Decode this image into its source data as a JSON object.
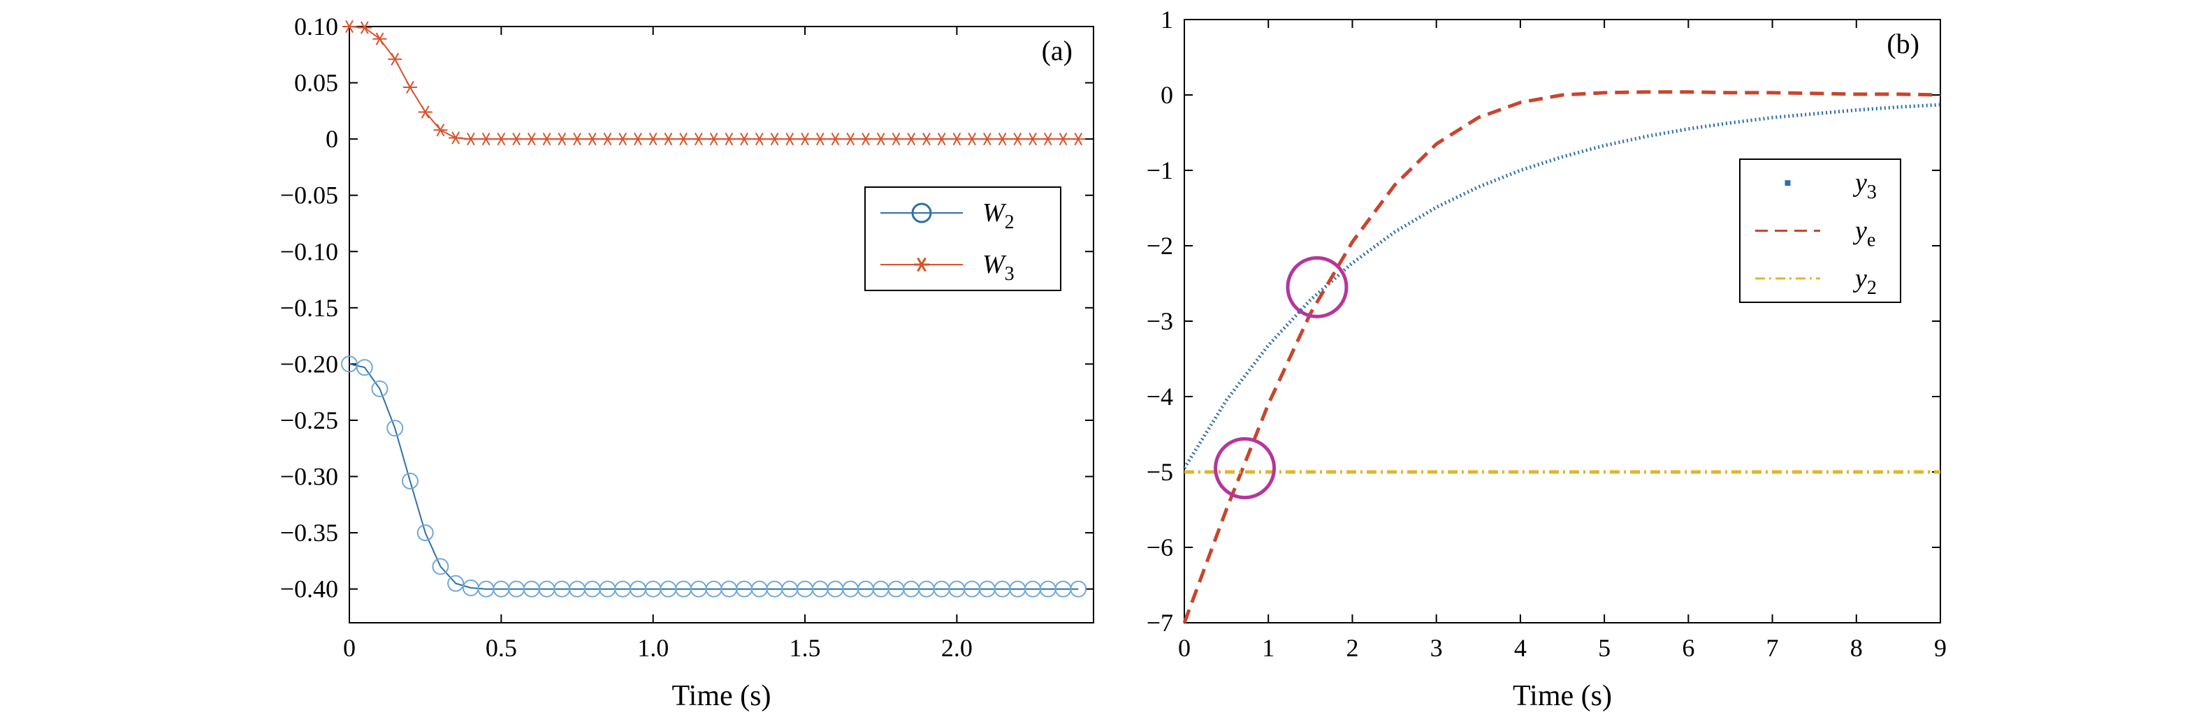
{
  "chart_data": [
    {
      "type": "line",
      "panel_label": "(a)",
      "xlabel": "Time (s)",
      "ylabel": "",
      "xlim": [
        0,
        2.45
      ],
      "ylim": [
        -0.43,
        0.1
      ],
      "x_ticks": [
        0,
        0.5,
        1.0,
        1.5,
        2.0
      ],
      "x_tick_labels": [
        "0",
        "0.5",
        "1.0",
        "1.5",
        "2.0"
      ],
      "y_ticks": [
        0.1,
        0.05,
        0,
        -0.05,
        -0.1,
        -0.15,
        -0.2,
        -0.25,
        -0.3,
        -0.35,
        -0.4
      ],
      "y_tick_labels": [
        "0.10",
        "0.05",
        "0",
        "−0.05",
        "−0.10",
        "−0.15",
        "−0.20",
        "−0.25",
        "−0.30",
        "−0.35",
        "−0.40"
      ],
      "grid": false,
      "legend_position": "right-middle",
      "series": [
        {
          "name": "W",
          "name_sub": "2",
          "marker": "circle",
          "color": "#2e6fa8",
          "marker_color": "#6fa8d8",
          "x": [
            0,
            0.05,
            0.1,
            0.15,
            0.2,
            0.25,
            0.3,
            0.35,
            0.4,
            0.45,
            0.5,
            0.55,
            0.6,
            0.65,
            0.7,
            0.75,
            0.8,
            0.85,
            0.9,
            0.95,
            1.0,
            1.05,
            1.1,
            1.15,
            1.2,
            1.25,
            1.3,
            1.35,
            1.4,
            1.45,
            1.5,
            1.55,
            1.6,
            1.65,
            1.7,
            1.75,
            1.8,
            1.85,
            1.9,
            1.95,
            2.0,
            2.05,
            2.1,
            2.15,
            2.2,
            2.25,
            2.3,
            2.35,
            2.4
          ],
          "y": [
            -0.2,
            -0.203,
            -0.222,
            -0.257,
            -0.304,
            -0.35,
            -0.38,
            -0.395,
            -0.399,
            -0.4,
            -0.4,
            -0.4,
            -0.4,
            -0.4,
            -0.4,
            -0.4,
            -0.4,
            -0.4,
            -0.4,
            -0.4,
            -0.4,
            -0.4,
            -0.4,
            -0.4,
            -0.4,
            -0.4,
            -0.4,
            -0.4,
            -0.4,
            -0.4,
            -0.4,
            -0.4,
            -0.4,
            -0.4,
            -0.4,
            -0.4,
            -0.4,
            -0.4,
            -0.4,
            -0.4,
            -0.4,
            -0.4,
            -0.4,
            -0.4,
            -0.4,
            -0.4,
            -0.4,
            -0.4,
            -0.4
          ]
        },
        {
          "name": "W",
          "name_sub": "3",
          "marker": "asterisk",
          "color": "#d9522b",
          "marker_color": "#d9522b",
          "x": [
            0,
            0.05,
            0.1,
            0.15,
            0.2,
            0.25,
            0.3,
            0.35,
            0.4,
            0.45,
            0.5,
            0.55,
            0.6,
            0.65,
            0.7,
            0.75,
            0.8,
            0.85,
            0.9,
            0.95,
            1.0,
            1.05,
            1.1,
            1.15,
            1.2,
            1.25,
            1.3,
            1.35,
            1.4,
            1.45,
            1.5,
            1.55,
            1.6,
            1.65,
            1.7,
            1.75,
            1.8,
            1.85,
            1.9,
            1.95,
            2.0,
            2.05,
            2.1,
            2.15,
            2.2,
            2.25,
            2.3,
            2.35,
            2.4
          ],
          "y": [
            0.1,
            0.099,
            0.089,
            0.071,
            0.046,
            0.024,
            0.008,
            0.001,
            0,
            0,
            0,
            0,
            0,
            0,
            0,
            0,
            0,
            0,
            0,
            0,
            0,
            0,
            0,
            0,
            0,
            0,
            0,
            0,
            0,
            0,
            0,
            0,
            0,
            0,
            0,
            0,
            0,
            0,
            0,
            0,
            0,
            0,
            0,
            0,
            0,
            0,
            0,
            0,
            0
          ]
        }
      ]
    },
    {
      "type": "line",
      "panel_label": "(b)",
      "xlabel": "Time (s)",
      "ylabel": "",
      "xlim": [
        0,
        9
      ],
      "ylim": [
        -7,
        1
      ],
      "x_ticks": [
        0,
        1,
        2,
        3,
        4,
        5,
        6,
        7,
        8,
        9
      ],
      "x_tick_labels": [
        "0",
        "1",
        "2",
        "3",
        "4",
        "5",
        "6",
        "7",
        "8",
        "9"
      ],
      "y_ticks": [
        1,
        0,
        -1,
        -2,
        -3,
        -4,
        -5,
        -6,
        -7
      ],
      "y_tick_labels": [
        "1",
        "0",
        "−1",
        "−2",
        "−3",
        "−4",
        "−5",
        "−6",
        "−7"
      ],
      "grid": false,
      "legend_position": "right-middle",
      "series": [
        {
          "name": "y",
          "name_sub": "3",
          "style": "dotted",
          "color": "#2e6fa8",
          "x": [
            0,
            0.5,
            1,
            1.5,
            2,
            2.5,
            3,
            3.5,
            4,
            4.5,
            5,
            5.5,
            6,
            6.5,
            7,
            7.5,
            8,
            8.5,
            9
          ],
          "y": [
            -4.95,
            -4.05,
            -3.32,
            -2.72,
            -2.23,
            -1.82,
            -1.49,
            -1.22,
            -1.0,
            -0.82,
            -0.67,
            -0.55,
            -0.45,
            -0.37,
            -0.3,
            -0.25,
            -0.2,
            -0.16,
            -0.13
          ]
        },
        {
          "name": "y",
          "name_sub": "e",
          "style": "dashed",
          "color": "#c8452d",
          "x": [
            0,
            0.5,
            1,
            1.5,
            2,
            2.5,
            3,
            3.5,
            4,
            4.5,
            5,
            5.5,
            6,
            6.5,
            7,
            7.5,
            8,
            8.5,
            9
          ],
          "y": [
            -7.0,
            -5.5,
            -4.1,
            -2.9,
            -1.95,
            -1.2,
            -0.65,
            -0.3,
            -0.1,
            0.0,
            0.03,
            0.04,
            0.04,
            0.03,
            0.03,
            0.02,
            0.01,
            0.01,
            0.0
          ]
        },
        {
          "name": "y",
          "name_sub": "2",
          "style": "dashdot",
          "color": "#e2b52e",
          "x": [
            0,
            9
          ],
          "y": [
            -5,
            -5
          ]
        }
      ],
      "annotations": [
        {
          "shape": "circle",
          "color": "#b5369b",
          "x": 1.58,
          "y": -2.55
        },
        {
          "shape": "circle",
          "color": "#b5369b",
          "x": 0.72,
          "y": -4.95
        }
      ]
    }
  ]
}
